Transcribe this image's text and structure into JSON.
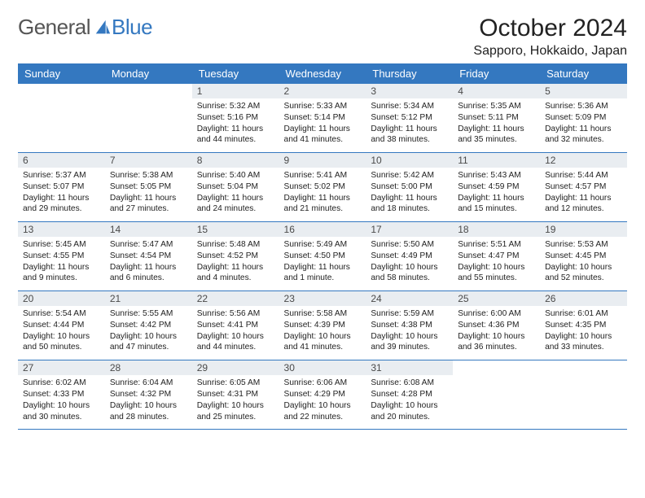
{
  "brand": {
    "part1": "General",
    "part2": "Blue"
  },
  "title": "October 2024",
  "location": "Sapporo, Hokkaido, Japan",
  "colors": {
    "accent": "#3478c0",
    "header_bg": "#3478c0",
    "daynum_bg": "#e9edf1",
    "text": "#222222"
  },
  "weekday_labels": [
    "Sunday",
    "Monday",
    "Tuesday",
    "Wednesday",
    "Thursday",
    "Friday",
    "Saturday"
  ],
  "weeks": [
    [
      {
        "n": "",
        "sr": "",
        "ss": "",
        "dl": ""
      },
      {
        "n": "",
        "sr": "",
        "ss": "",
        "dl": ""
      },
      {
        "n": "1",
        "sr": "Sunrise: 5:32 AM",
        "ss": "Sunset: 5:16 PM",
        "dl": "Daylight: 11 hours and 44 minutes."
      },
      {
        "n": "2",
        "sr": "Sunrise: 5:33 AM",
        "ss": "Sunset: 5:14 PM",
        "dl": "Daylight: 11 hours and 41 minutes."
      },
      {
        "n": "3",
        "sr": "Sunrise: 5:34 AM",
        "ss": "Sunset: 5:12 PM",
        "dl": "Daylight: 11 hours and 38 minutes."
      },
      {
        "n": "4",
        "sr": "Sunrise: 5:35 AM",
        "ss": "Sunset: 5:11 PM",
        "dl": "Daylight: 11 hours and 35 minutes."
      },
      {
        "n": "5",
        "sr": "Sunrise: 5:36 AM",
        "ss": "Sunset: 5:09 PM",
        "dl": "Daylight: 11 hours and 32 minutes."
      }
    ],
    [
      {
        "n": "6",
        "sr": "Sunrise: 5:37 AM",
        "ss": "Sunset: 5:07 PM",
        "dl": "Daylight: 11 hours and 29 minutes."
      },
      {
        "n": "7",
        "sr": "Sunrise: 5:38 AM",
        "ss": "Sunset: 5:05 PM",
        "dl": "Daylight: 11 hours and 27 minutes."
      },
      {
        "n": "8",
        "sr": "Sunrise: 5:40 AM",
        "ss": "Sunset: 5:04 PM",
        "dl": "Daylight: 11 hours and 24 minutes."
      },
      {
        "n": "9",
        "sr": "Sunrise: 5:41 AM",
        "ss": "Sunset: 5:02 PM",
        "dl": "Daylight: 11 hours and 21 minutes."
      },
      {
        "n": "10",
        "sr": "Sunrise: 5:42 AM",
        "ss": "Sunset: 5:00 PM",
        "dl": "Daylight: 11 hours and 18 minutes."
      },
      {
        "n": "11",
        "sr": "Sunrise: 5:43 AM",
        "ss": "Sunset: 4:59 PM",
        "dl": "Daylight: 11 hours and 15 minutes."
      },
      {
        "n": "12",
        "sr": "Sunrise: 5:44 AM",
        "ss": "Sunset: 4:57 PM",
        "dl": "Daylight: 11 hours and 12 minutes."
      }
    ],
    [
      {
        "n": "13",
        "sr": "Sunrise: 5:45 AM",
        "ss": "Sunset: 4:55 PM",
        "dl": "Daylight: 11 hours and 9 minutes."
      },
      {
        "n": "14",
        "sr": "Sunrise: 5:47 AM",
        "ss": "Sunset: 4:54 PM",
        "dl": "Daylight: 11 hours and 6 minutes."
      },
      {
        "n": "15",
        "sr": "Sunrise: 5:48 AM",
        "ss": "Sunset: 4:52 PM",
        "dl": "Daylight: 11 hours and 4 minutes."
      },
      {
        "n": "16",
        "sr": "Sunrise: 5:49 AM",
        "ss": "Sunset: 4:50 PM",
        "dl": "Daylight: 11 hours and 1 minute."
      },
      {
        "n": "17",
        "sr": "Sunrise: 5:50 AM",
        "ss": "Sunset: 4:49 PM",
        "dl": "Daylight: 10 hours and 58 minutes."
      },
      {
        "n": "18",
        "sr": "Sunrise: 5:51 AM",
        "ss": "Sunset: 4:47 PM",
        "dl": "Daylight: 10 hours and 55 minutes."
      },
      {
        "n": "19",
        "sr": "Sunrise: 5:53 AM",
        "ss": "Sunset: 4:45 PM",
        "dl": "Daylight: 10 hours and 52 minutes."
      }
    ],
    [
      {
        "n": "20",
        "sr": "Sunrise: 5:54 AM",
        "ss": "Sunset: 4:44 PM",
        "dl": "Daylight: 10 hours and 50 minutes."
      },
      {
        "n": "21",
        "sr": "Sunrise: 5:55 AM",
        "ss": "Sunset: 4:42 PM",
        "dl": "Daylight: 10 hours and 47 minutes."
      },
      {
        "n": "22",
        "sr": "Sunrise: 5:56 AM",
        "ss": "Sunset: 4:41 PM",
        "dl": "Daylight: 10 hours and 44 minutes."
      },
      {
        "n": "23",
        "sr": "Sunrise: 5:58 AM",
        "ss": "Sunset: 4:39 PM",
        "dl": "Daylight: 10 hours and 41 minutes."
      },
      {
        "n": "24",
        "sr": "Sunrise: 5:59 AM",
        "ss": "Sunset: 4:38 PM",
        "dl": "Daylight: 10 hours and 39 minutes."
      },
      {
        "n": "25",
        "sr": "Sunrise: 6:00 AM",
        "ss": "Sunset: 4:36 PM",
        "dl": "Daylight: 10 hours and 36 minutes."
      },
      {
        "n": "26",
        "sr": "Sunrise: 6:01 AM",
        "ss": "Sunset: 4:35 PM",
        "dl": "Daylight: 10 hours and 33 minutes."
      }
    ],
    [
      {
        "n": "27",
        "sr": "Sunrise: 6:02 AM",
        "ss": "Sunset: 4:33 PM",
        "dl": "Daylight: 10 hours and 30 minutes."
      },
      {
        "n": "28",
        "sr": "Sunrise: 6:04 AM",
        "ss": "Sunset: 4:32 PM",
        "dl": "Daylight: 10 hours and 28 minutes."
      },
      {
        "n": "29",
        "sr": "Sunrise: 6:05 AM",
        "ss": "Sunset: 4:31 PM",
        "dl": "Daylight: 10 hours and 25 minutes."
      },
      {
        "n": "30",
        "sr": "Sunrise: 6:06 AM",
        "ss": "Sunset: 4:29 PM",
        "dl": "Daylight: 10 hours and 22 minutes."
      },
      {
        "n": "31",
        "sr": "Sunrise: 6:08 AM",
        "ss": "Sunset: 4:28 PM",
        "dl": "Daylight: 10 hours and 20 minutes."
      },
      {
        "n": "",
        "sr": "",
        "ss": "",
        "dl": ""
      },
      {
        "n": "",
        "sr": "",
        "ss": "",
        "dl": ""
      }
    ]
  ]
}
